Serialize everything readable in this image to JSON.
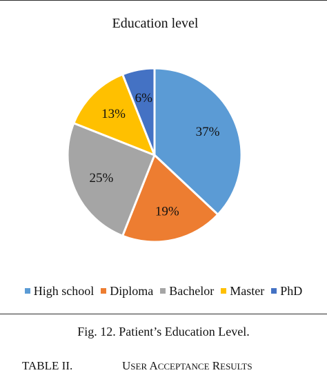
{
  "chart_data": {
    "type": "pie",
    "title": "Education level",
    "slices": [
      {
        "name": "High school",
        "value": 37,
        "label": "37%",
        "color": "#5b9bd5"
      },
      {
        "name": "Diploma",
        "value": 19,
        "label": "19%",
        "color": "#ed7d31"
      },
      {
        "name": "Bachelor",
        "value": 25,
        "label": "25%",
        "color": "#a5a5a5"
      },
      {
        "name": "Master",
        "value": 13,
        "label": "13%",
        "color": "#ffc000"
      },
      {
        "name": "PhD",
        "value": 6,
        "label": "6%",
        "color": "#4472c4"
      }
    ],
    "start_angle_deg": 0,
    "direction": "clockwise",
    "legend_position": "bottom"
  },
  "figure": {
    "caption": "Fig. 12.  Patient’s Education Level."
  },
  "table": {
    "label": "TABLE II.",
    "title_first_big": "U",
    "title_first_small": "SER",
    "title_second_big": "A",
    "title_second_small": "CCEPTANCE",
    "title_third_big": "R",
    "title_third_small": "ESULTS"
  }
}
